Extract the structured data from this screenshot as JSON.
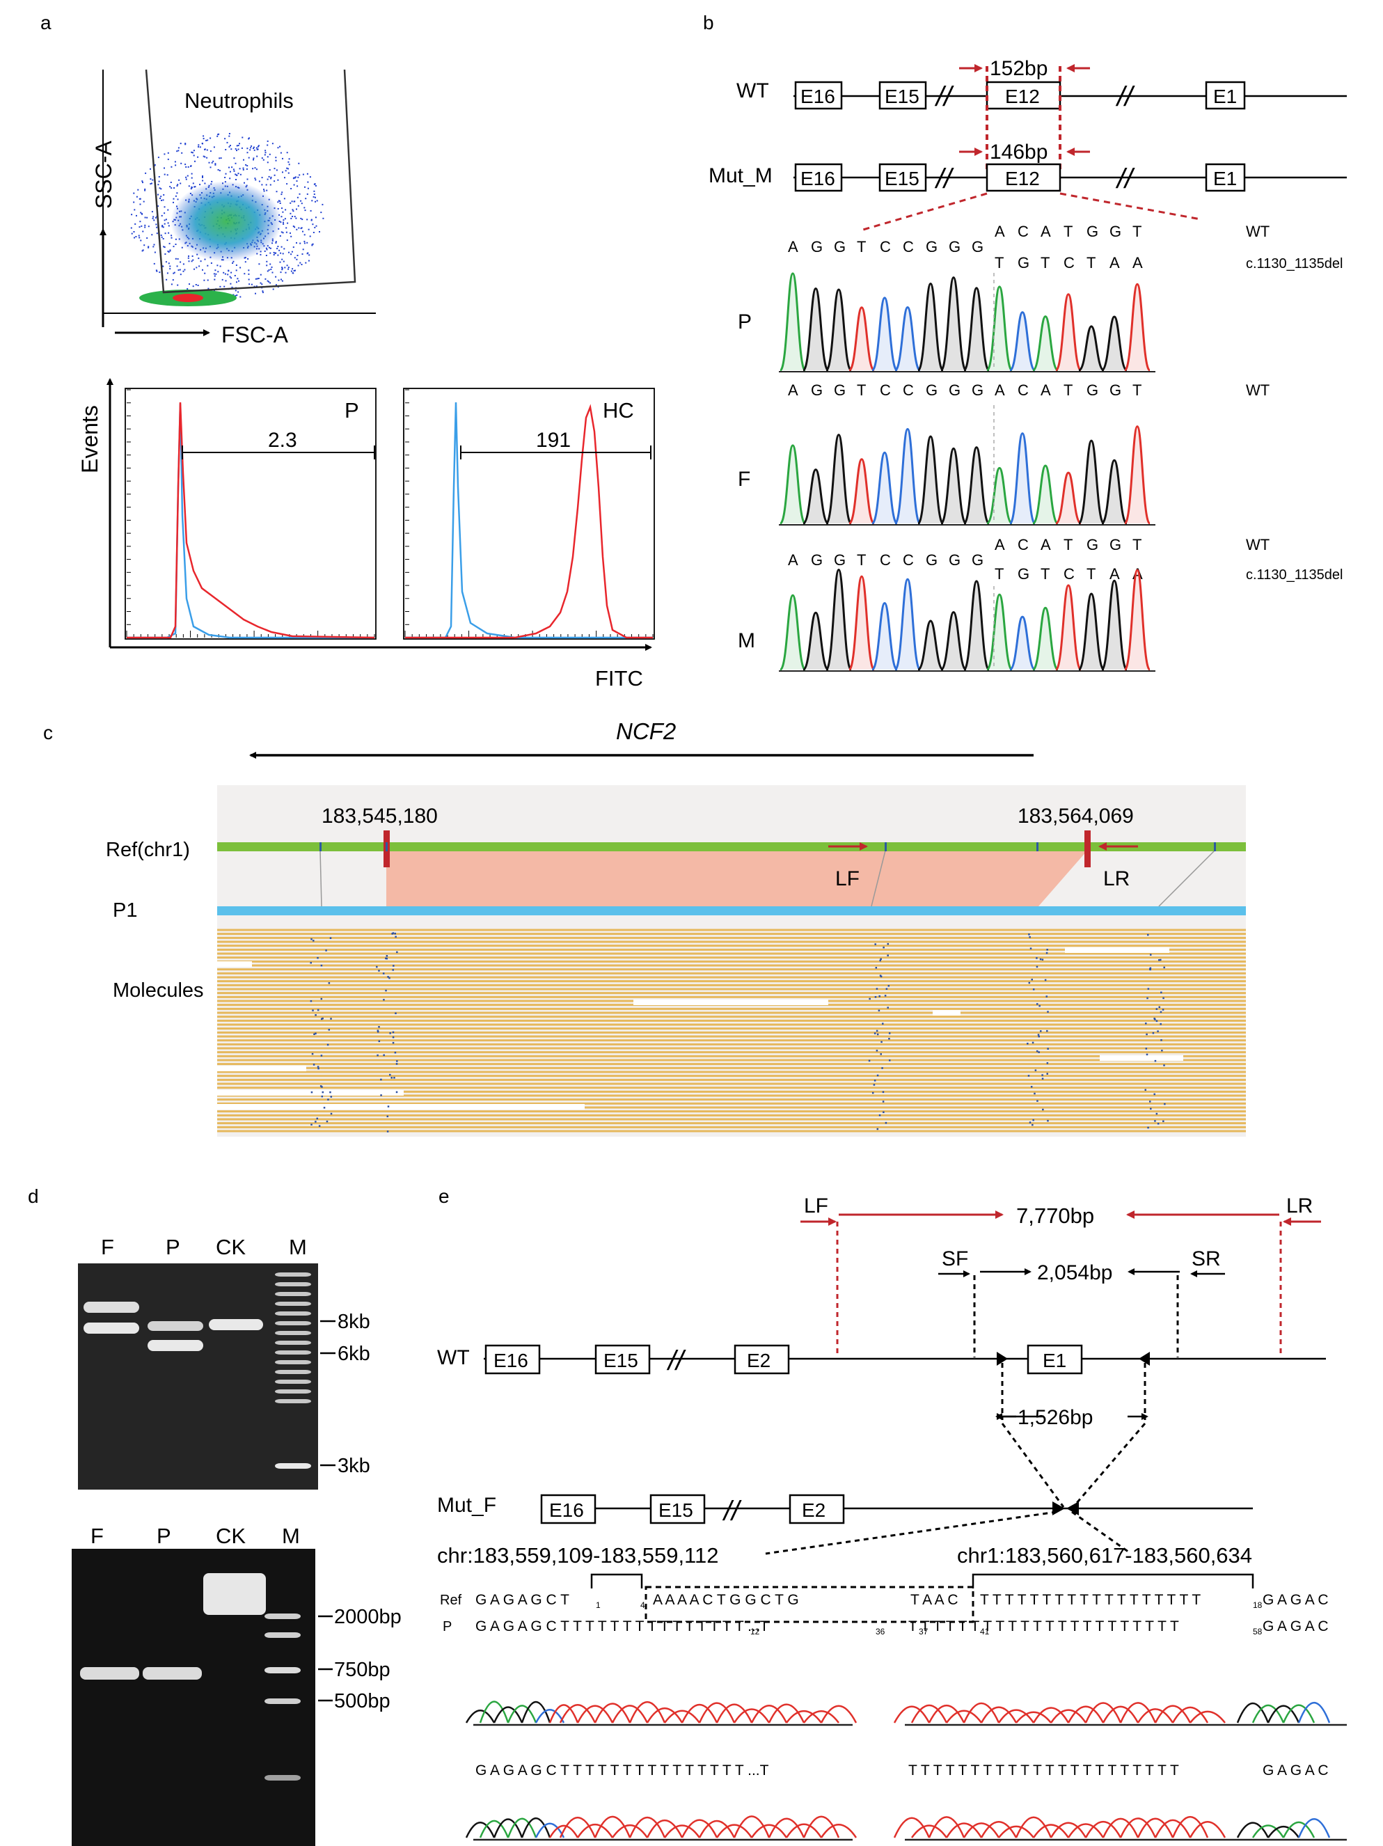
{
  "panels": {
    "a": "a",
    "b": "b",
    "c": "c",
    "d": "d",
    "e": "e"
  },
  "panel_a": {
    "scatter": {
      "gate_label": "Neutrophils",
      "x_axis": "FSC-A",
      "y_axis": "SSC-A"
    },
    "hist_y_label": "Events",
    "hist_x_label": "FITC",
    "hist_left": {
      "label": "P",
      "value": "2.3"
    },
    "hist_right": {
      "label": "HC",
      "value": "191"
    },
    "colors": {
      "sample": "#e8262c",
      "control": "#3a9ee8"
    }
  },
  "panel_b": {
    "wt_label": "WT",
    "mut_label": "Mut_M",
    "exons": [
      "E16",
      "E15",
      "E12",
      "E1"
    ],
    "wt_product": "152bp",
    "mut_product": "146bp",
    "seq_common": [
      "A",
      "G",
      "G",
      "T",
      "C",
      "C",
      "G",
      "G",
      "G"
    ],
    "seq_wt_tail": [
      "A",
      "C",
      "A",
      "T",
      "G",
      "G",
      "T"
    ],
    "seq_mut_tail": [
      "T",
      "G",
      "T",
      "C",
      "T",
      "A",
      "A"
    ],
    "seq_f_full": [
      "A",
      "G",
      "G",
      "T",
      "C",
      "C",
      "G",
      "G",
      "G",
      "A",
      "C",
      "A",
      "T",
      "G",
      "G",
      "T"
    ],
    "wt_tag": "WT",
    "mut_tag": "c.1130_1135del",
    "samples": [
      "P",
      "F",
      "M"
    ]
  },
  "panel_c": {
    "gene": "NCF2",
    "coord_left": "183,545,180",
    "coord_right": "183,564,069",
    "ref_label": "Ref(chr1)",
    "sample_label": "P1",
    "molecules_label": "Molecules",
    "primer_f": "LF",
    "primer_r": "LR",
    "colors": {
      "ref": "#7cbf3b",
      "sample": "#5bc0eb",
      "deletion": "#f4b9a6",
      "molecule": "#e6b85c",
      "marker": "#c0262c"
    }
  },
  "panel_d": {
    "top_lanes": [
      "F",
      "P",
      "CK",
      "M"
    ],
    "top_markers": [
      "8kb",
      "6kb",
      "3kb"
    ],
    "bottom_lanes": [
      "F",
      "P",
      "CK",
      "M"
    ],
    "bottom_markers": [
      "2000bp",
      "750bp",
      "500bp"
    ]
  },
  "panel_e": {
    "lf": "LF",
    "lr": "LR",
    "long_product": "7,770bp",
    "sf": "SF",
    "sr": "SR",
    "short_product": "2,054bp",
    "wt_label": "WT",
    "wt_exons": [
      "E16",
      "E15",
      "E2",
      "E1"
    ],
    "deletion_size": "1,526bp",
    "mut_label": "Mut_F",
    "mut_exons": [
      "E16",
      "E15",
      "E2"
    ],
    "breakpoint_left": "chr:183,559,109-183,559,112",
    "breakpoint_right": "chr1:183,560,617-183,560,634",
    "ref_row_label": "Ref",
    "ref_seq_left": "G A G A G C T",
    "ref_t_block": "T",
    "ref_ins": "A A A A C T G G C T G",
    "ref_dots": "T A A C",
    "ref_t_run": "T T T T T T T T T T T T T T T T T T",
    "ref_tail": "G A G A C",
    "p_row_label": "P",
    "p_seq": "G A G A G C T T T T T T T T T T T T T T T ...T",
    "p_seq_right": "T T T T T T T T T T T T T T T T T T T T T T",
    "p_tail": "G A G A C",
    "subs": {
      "s1": "1",
      "s4": "4",
      "s12": "12",
      "s36": "36",
      "s37": "37",
      "s41": "41",
      "s58": "58",
      "s18": "18"
    }
  }
}
